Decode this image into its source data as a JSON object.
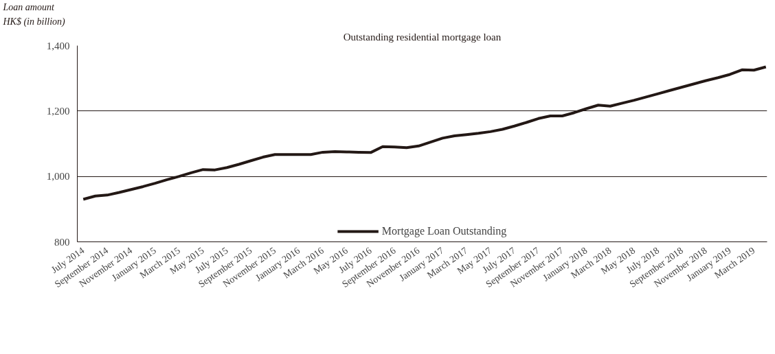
{
  "chart_data": {
    "type": "line",
    "title": "Outstanding residential mortgage loan",
    "ylabel": "Loan amount\nHK$ (in billion)",
    "categories": [
      "July 2014",
      null,
      "September 2014",
      null,
      "November 2014",
      null,
      "January 2015",
      null,
      "March 2015",
      null,
      "May 2015",
      null,
      "July 2015",
      null,
      "September 2015",
      null,
      "November 2015",
      null,
      "January 2016",
      null,
      "March 2016",
      null,
      "May 2016",
      null,
      "July 2016",
      null,
      "September 2016",
      null,
      "November 2016",
      null,
      "January 2017",
      null,
      "March 2017",
      null,
      "May 2017",
      null,
      "July 2017",
      null,
      "September 2017",
      null,
      "November 2017",
      null,
      "January 2018",
      null,
      "March 2018",
      null,
      "May 2018",
      null,
      "July 2018",
      null,
      "September 2018",
      null,
      "November 2018",
      null,
      "January 2019",
      null,
      "March 2019",
      null
    ],
    "series": [
      {
        "name": "Mortgage Loan Outstanding",
        "color": "#231815",
        "values": [
          930,
          940,
          943,
          951,
          960,
          969,
          979,
          990,
          1000,
          1011,
          1021,
          1020,
          1027,
          1037,
          1048,
          1059,
          1067,
          1067,
          1067,
          1067,
          1074,
          1076,
          1075,
          1074,
          1073,
          1091,
          1090,
          1088,
          1093,
          1105,
          1117,
          1124,
          1128,
          1132,
          1137,
          1144,
          1154,
          1165,
          1177,
          1185,
          1185,
          1195,
          1207,
          1218,
          1215,
          1224,
          1233,
          1243,
          1253,
          1263,
          1273,
          1283,
          1293,
          1302,
          1312,
          1326,
          1325,
          1335
        ]
      }
    ],
    "ylim": [
      800,
      1400
    ],
    "yticks": [
      {
        "value": 800,
        "label": "800"
      },
      {
        "value": 1000,
        "label": "1,000"
      },
      {
        "value": 1200,
        "label": "1,200"
      },
      {
        "value": 1400,
        "label": "1,400"
      }
    ],
    "grid": "y",
    "legend": "bottom",
    "marker": "none",
    "line_style": "solid"
  }
}
